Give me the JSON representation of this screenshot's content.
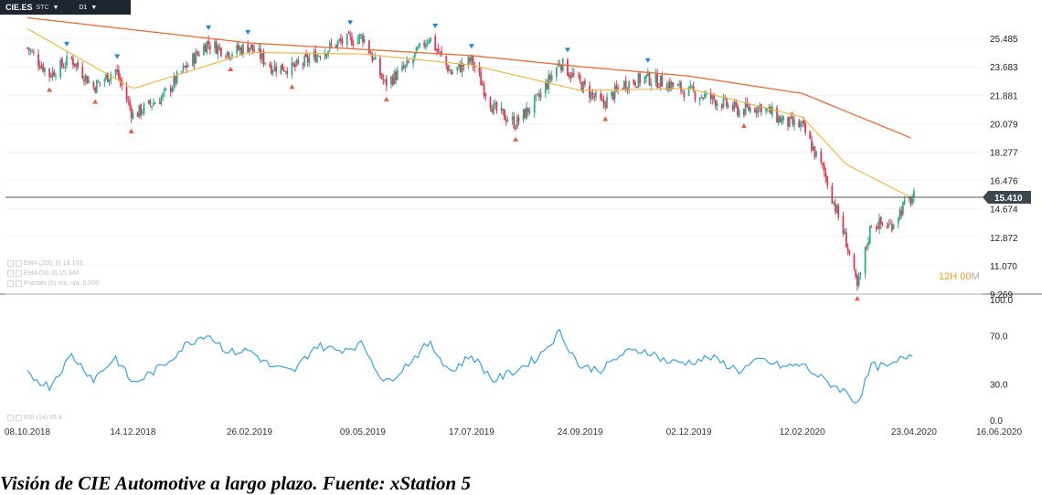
{
  "toolbar": {
    "symbol": "CIE.ES",
    "type": "STC",
    "timeframe": "D1"
  },
  "legend": {
    "ema200": "EMA (200, 0) 19.103",
    "ema50": "EMA (50, 0) 15.344",
    "fractals": "Fractals (5) n/a, n/a, 0.000",
    "rsi": "RSI (14) 55.4"
  },
  "countdown": {
    "hm": "12H 00",
    "m": "M"
  },
  "caption": "Visión de CIE Automotive a largo plazo. Fuente: xStation 5",
  "colors": {
    "up": "#2eac8e",
    "down": "#dd3a52",
    "ema200": "#ef6a35",
    "ema50": "#f2b33a",
    "rsi": "#36a3e4",
    "fractal_up": "#1a87e0",
    "fractal_down": "#e85a45",
    "grid": "#e6e9ec"
  },
  "chart_data": [
    {
      "type": "candlestick",
      "title": "",
      "symbol": "CIE.ES",
      "interval": "D1",
      "x_range": [
        "08.10.2018",
        "16.06.2020"
      ],
      "x_ticks": [
        "08.10.2018",
        "14.12.2018",
        "26.02.2019",
        "09.05.2019",
        "17.07.2019",
        "24.09.2019",
        "02.12.2019",
        "12.02.2020",
        "23.04.2020",
        "16.06.2020"
      ],
      "y_range": [
        9.269,
        27.0
      ],
      "y_ticks": [
        "25.485",
        "23.683",
        "21.881",
        "20.079",
        "18.277",
        "16.476",
        "14.674",
        "12.872",
        "11.070",
        "9.269"
      ],
      "last_price": "15.410",
      "close_path": [
        {
          "x": "08.10.2018",
          "y": 24.9
        },
        {
          "x": "22.10.2018",
          "y": 23.2
        },
        {
          "x": "05.11.2018",
          "y": 24.2
        },
        {
          "x": "19.11.2018",
          "y": 22.4
        },
        {
          "x": "03.12.2018",
          "y": 23.5
        },
        {
          "x": "14.12.2018",
          "y": 20.6
        },
        {
          "x": "02.01.2019",
          "y": 21.8
        },
        {
          "x": "16.01.2019",
          "y": 23.6
        },
        {
          "x": "30.01.2019",
          "y": 25.2
        },
        {
          "x": "13.02.2019",
          "y": 24.6
        },
        {
          "x": "26.02.2019",
          "y": 25.0
        },
        {
          "x": "12.03.2019",
          "y": 23.7
        },
        {
          "x": "26.03.2019",
          "y": 23.6
        },
        {
          "x": "09.04.2019",
          "y": 24.4
        },
        {
          "x": "23.04.2019",
          "y": 25.2
        },
        {
          "x": "09.05.2019",
          "y": 25.6
        },
        {
          "x": "23.05.2019",
          "y": 22.6
        },
        {
          "x": "06.06.2019",
          "y": 23.7
        },
        {
          "x": "20.06.2019",
          "y": 25.6
        },
        {
          "x": "04.07.2019",
          "y": 23.3
        },
        {
          "x": "17.07.2019",
          "y": 24.1
        },
        {
          "x": "31.07.2019",
          "y": 21.0
        },
        {
          "x": "14.08.2019",
          "y": 20.1
        },
        {
          "x": "28.08.2019",
          "y": 21.6
        },
        {
          "x": "11.09.2019",
          "y": 24.0
        },
        {
          "x": "24.09.2019",
          "y": 22.6
        },
        {
          "x": "08.10.2019",
          "y": 21.3
        },
        {
          "x": "22.10.2019",
          "y": 22.6
        },
        {
          "x": "05.11.2019",
          "y": 23.0
        },
        {
          "x": "19.11.2019",
          "y": 22.6
        },
        {
          "x": "02.12.2019",
          "y": 22.1
        },
        {
          "x": "16.12.2019",
          "y": 21.7
        },
        {
          "x": "03.01.2020",
          "y": 20.9
        },
        {
          "x": "17.01.2020",
          "y": 21.2
        },
        {
          "x": "31.01.2020",
          "y": 20.2
        },
        {
          "x": "12.02.2020",
          "y": 19.9
        },
        {
          "x": "26.02.2020",
          "y": 17.0
        },
        {
          "x": "11.03.2020",
          "y": 12.6
        },
        {
          "x": "18.03.2020",
          "y": 9.6
        },
        {
          "x": "27.03.2020",
          "y": 13.8
        },
        {
          "x": "08.04.2020",
          "y": 13.6
        },
        {
          "x": "16.04.2020",
          "y": 14.8
        },
        {
          "x": "23.04.2020",
          "y": 15.4
        }
      ],
      "ema200": [
        {
          "x": "08.10.2018",
          "y": 26.8
        },
        {
          "x": "26.02.2019",
          "y": 25.2
        },
        {
          "x": "17.07.2019",
          "y": 24.4
        },
        {
          "x": "24.09.2019",
          "y": 23.7
        },
        {
          "x": "02.12.2019",
          "y": 23.1
        },
        {
          "x": "12.02.2020",
          "y": 22.0
        },
        {
          "x": "23.04.2020",
          "y": 19.1
        }
      ],
      "ema50": [
        {
          "x": "08.10.2018",
          "y": 26.1
        },
        {
          "x": "14.12.2018",
          "y": 22.3
        },
        {
          "x": "26.02.2019",
          "y": 24.6
        },
        {
          "x": "09.05.2019",
          "y": 24.5
        },
        {
          "x": "17.07.2019",
          "y": 23.8
        },
        {
          "x": "24.09.2019",
          "y": 22.2
        },
        {
          "x": "02.12.2019",
          "y": 22.3
        },
        {
          "x": "12.02.2020",
          "y": 20.5
        },
        {
          "x": "11.03.2020",
          "y": 17.5
        },
        {
          "x": "23.04.2020",
          "y": 15.3
        }
      ]
    },
    {
      "type": "line",
      "title": "",
      "indicator": "RSI (14)",
      "y_range": [
        0,
        100
      ],
      "y_ticks": [
        "100.0",
        "70.0",
        "30.0",
        "0.0"
      ],
      "last_value": 55.4,
      "series": [
        {
          "x": "08.10.2018",
          "y": 38
        },
        {
          "x": "22.10.2018",
          "y": 28
        },
        {
          "x": "05.11.2018",
          "y": 54
        },
        {
          "x": "19.11.2018",
          "y": 34
        },
        {
          "x": "03.12.2018",
          "y": 52
        },
        {
          "x": "14.12.2018",
          "y": 30
        },
        {
          "x": "02.01.2019",
          "y": 45
        },
        {
          "x": "16.01.2019",
          "y": 62
        },
        {
          "x": "30.01.2019",
          "y": 72
        },
        {
          "x": "13.02.2019",
          "y": 56
        },
        {
          "x": "26.02.2019",
          "y": 58
        },
        {
          "x": "12.03.2019",
          "y": 44
        },
        {
          "x": "26.03.2019",
          "y": 40
        },
        {
          "x": "09.04.2019",
          "y": 62
        },
        {
          "x": "23.04.2019",
          "y": 58
        },
        {
          "x": "09.05.2019",
          "y": 63
        },
        {
          "x": "23.05.2019",
          "y": 30
        },
        {
          "x": "06.06.2019",
          "y": 46
        },
        {
          "x": "20.06.2019",
          "y": 64
        },
        {
          "x": "04.07.2019",
          "y": 40
        },
        {
          "x": "17.07.2019",
          "y": 54
        },
        {
          "x": "31.07.2019",
          "y": 33
        },
        {
          "x": "14.08.2019",
          "y": 41
        },
        {
          "x": "28.08.2019",
          "y": 52
        },
        {
          "x": "11.09.2019",
          "y": 73
        },
        {
          "x": "24.09.2019",
          "y": 44
        },
        {
          "x": "08.10.2019",
          "y": 42
        },
        {
          "x": "22.10.2019",
          "y": 56
        },
        {
          "x": "05.11.2019",
          "y": 58
        },
        {
          "x": "19.11.2019",
          "y": 48
        },
        {
          "x": "02.12.2019",
          "y": 48
        },
        {
          "x": "16.12.2019",
          "y": 52
        },
        {
          "x": "03.01.2020",
          "y": 41
        },
        {
          "x": "17.01.2020",
          "y": 50
        },
        {
          "x": "31.01.2020",
          "y": 44
        },
        {
          "x": "12.02.2020",
          "y": 46
        },
        {
          "x": "26.02.2020",
          "y": 33
        },
        {
          "x": "11.03.2020",
          "y": 23
        },
        {
          "x": "18.03.2020",
          "y": 14
        },
        {
          "x": "27.03.2020",
          "y": 45
        },
        {
          "x": "08.04.2020",
          "y": 44
        },
        {
          "x": "16.04.2020",
          "y": 52
        },
        {
          "x": "23.04.2020",
          "y": 55.4
        }
      ]
    }
  ]
}
